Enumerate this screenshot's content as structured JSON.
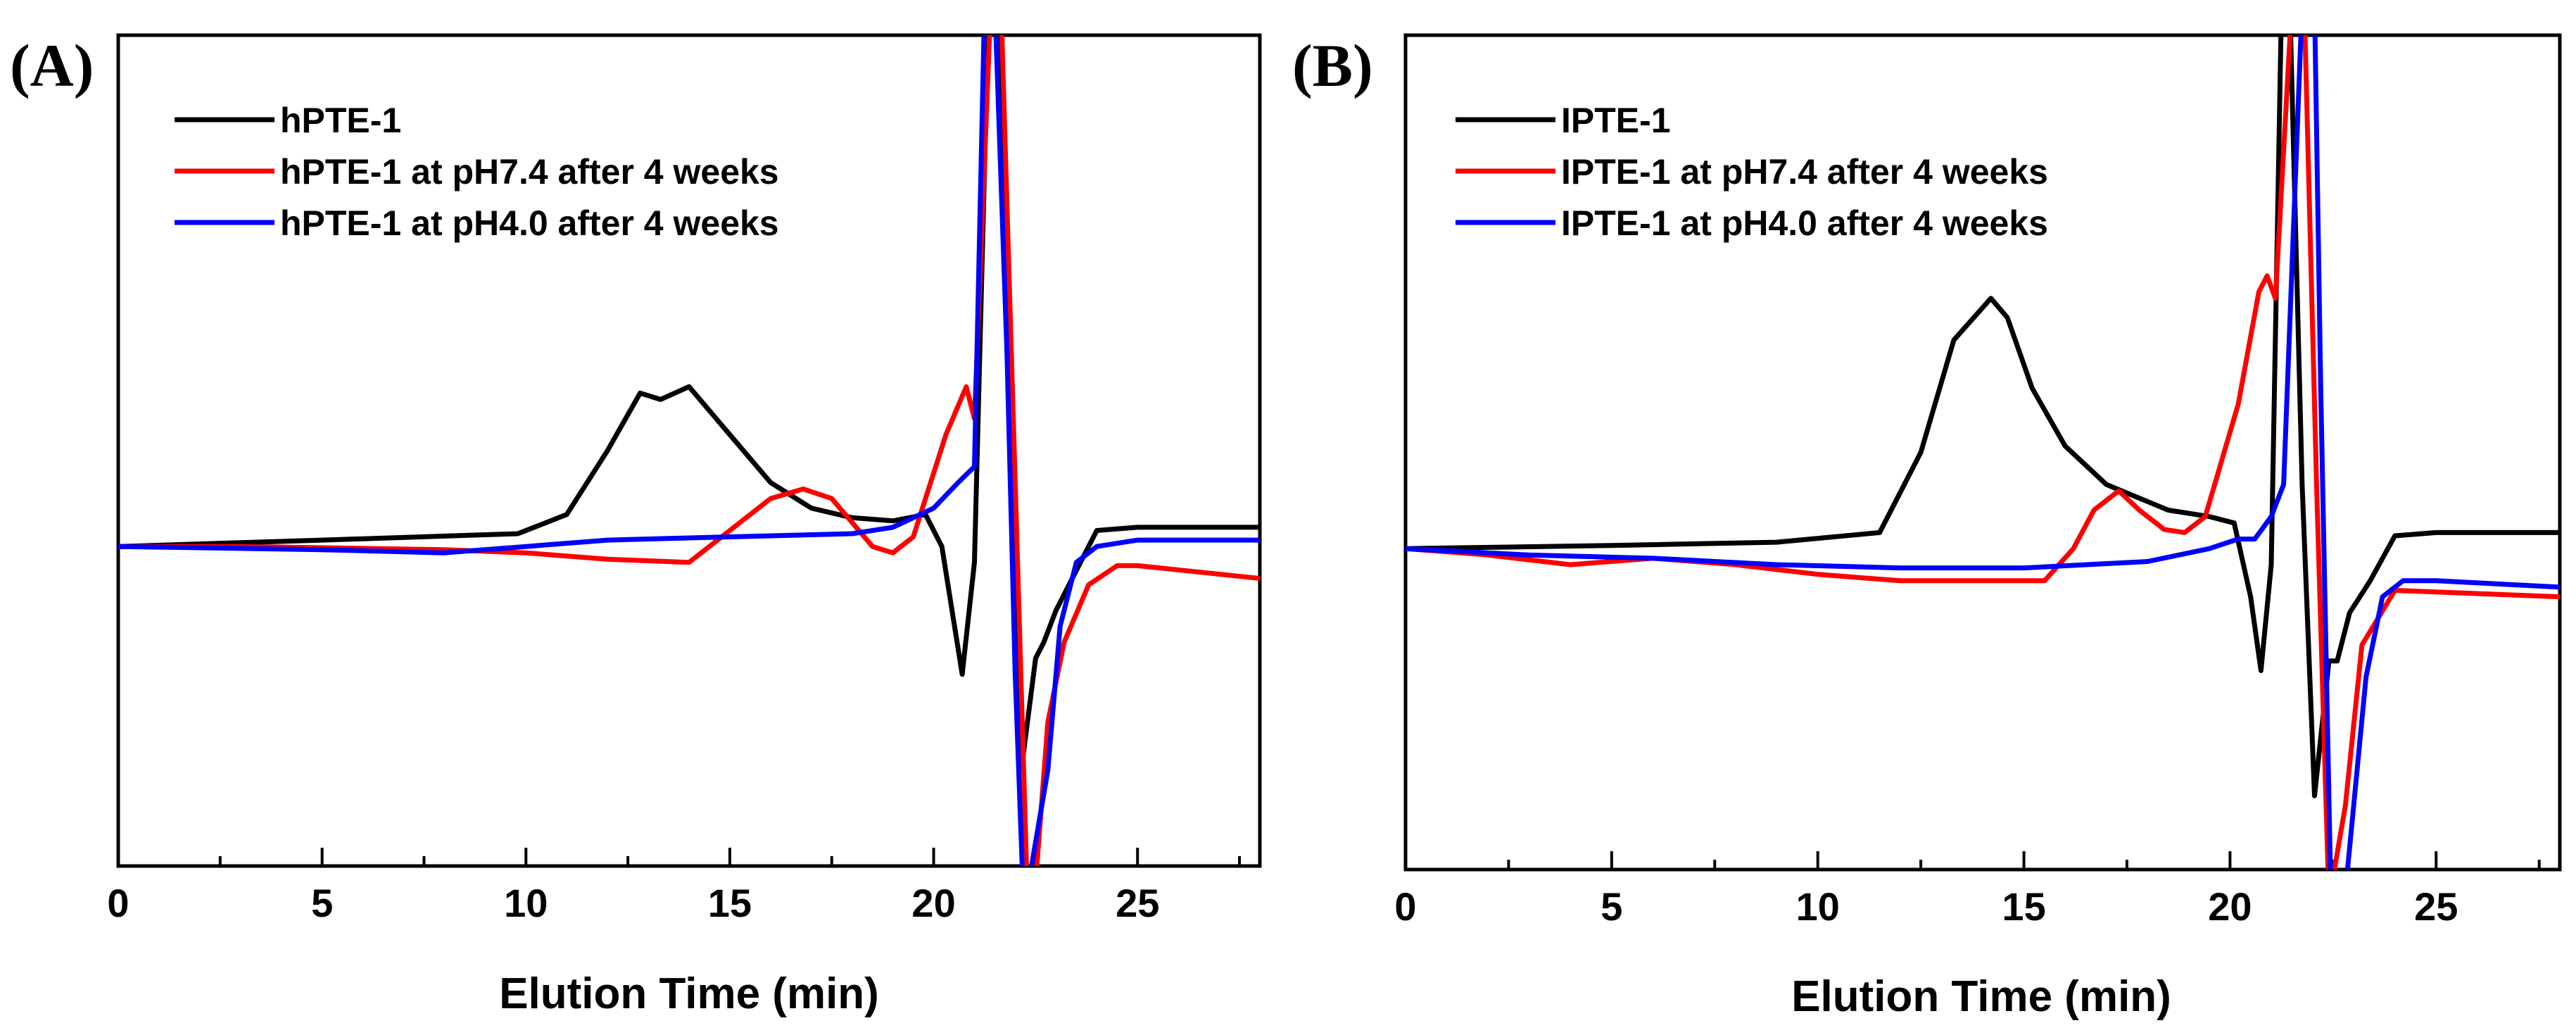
{
  "chart_data": [
    {
      "type": "line",
      "panel_label": "(A)",
      "title": "",
      "xlabel": "Elution Time (min)",
      "ylabel": "",
      "xlim": [
        0,
        28
      ],
      "ylim": [
        -1.0,
        1.6
      ],
      "xticks": [
        0,
        5,
        10,
        15,
        20,
        25
      ],
      "xtick_labels": [
        "0",
        "5",
        "10",
        "15",
        "20",
        "25"
      ],
      "legend_position": "top-left",
      "series": [
        {
          "name": "hPTE-1",
          "color": "#000000",
          "x": [
            0,
            5,
            9.8,
            11,
            12,
            12.8,
            13.3,
            14,
            15,
            16,
            17,
            18,
            19,
            19.8,
            20.2,
            20.7,
            21.0,
            21.35,
            21.6,
            21.9,
            22.15,
            22.5,
            22.7,
            23.0,
            23.4,
            24,
            25,
            28
          ],
          "y": [
            0.0,
            0.02,
            0.04,
            0.1,
            0.3,
            0.48,
            0.46,
            0.5,
            0.35,
            0.2,
            0.12,
            0.09,
            0.08,
            0.1,
            0.0,
            -0.4,
            -0.05,
            1.7,
            1.7,
            0.2,
            -0.7,
            -0.35,
            -0.3,
            -0.2,
            -0.1,
            0.05,
            0.06,
            0.06
          ]
        },
        {
          "name": "hPTE-1 at pH7.4 after 4 weeks",
          "color": "#ff0000",
          "x": [
            0,
            3,
            8,
            10,
            12,
            14,
            15,
            16,
            16.8,
            17.5,
            18.5,
            19,
            19.5,
            20.3,
            20.8,
            21.0,
            21.4,
            21.65,
            22.0,
            22.3,
            22.5,
            22.8,
            23.2,
            23.8,
            24.5,
            25,
            28
          ],
          "y": [
            0.0,
            0.0,
            -0.01,
            -0.02,
            -0.04,
            -0.05,
            0.05,
            0.15,
            0.18,
            0.15,
            0.0,
            -0.02,
            0.03,
            0.35,
            0.5,
            0.4,
            1.7,
            1.7,
            0.2,
            -1.1,
            -1.05,
            -0.55,
            -0.3,
            -0.12,
            -0.06,
            -0.06,
            -0.1
          ]
        },
        {
          "name": "hPTE-1 at pH4.0 after 4 weeks",
          "color": "#0000ff",
          "x": [
            0,
            5,
            8,
            10,
            12,
            15,
            18,
            19,
            20,
            20.6,
            21.0,
            21.25,
            21.5,
            21.8,
            22.0,
            22.2,
            22.4,
            22.8,
            23.1,
            23.5,
            24,
            25,
            28
          ],
          "y": [
            0.0,
            -0.01,
            -0.02,
            0.0,
            0.02,
            0.03,
            0.04,
            0.06,
            0.12,
            0.2,
            0.25,
            1.7,
            1.7,
            0.6,
            -0.4,
            -1.1,
            -1.0,
            -0.7,
            -0.25,
            -0.05,
            0.0,
            0.02,
            0.02
          ]
        }
      ]
    },
    {
      "type": "line",
      "panel_label": "(B)",
      "title": "",
      "xlabel": "Elution Time (min)",
      "ylabel": "",
      "xlim": [
        0,
        28
      ],
      "ylim": [
        -1.0,
        1.6
      ],
      "xticks": [
        0,
        5,
        10,
        15,
        20,
        25
      ],
      "xtick_labels": [
        "0",
        "5",
        "10",
        "15",
        "20",
        "25"
      ],
      "legend_position": "top-left",
      "series": [
        {
          "name": "IPTE-1",
          "color": "#000000",
          "x": [
            0,
            5,
            9,
            11.5,
            12.5,
            13.3,
            14.2,
            14.6,
            15.2,
            16,
            17,
            18.5,
            19.5,
            20.1,
            20.5,
            20.75,
            21.0,
            21.25,
            21.45,
            21.75,
            22.05,
            22.4,
            22.6,
            22.9,
            23.4,
            24,
            25,
            28
          ],
          "y": [
            0.0,
            0.01,
            0.02,
            0.05,
            0.3,
            0.65,
            0.78,
            0.72,
            0.5,
            0.32,
            0.2,
            0.12,
            0.1,
            0.08,
            -0.15,
            -0.38,
            -0.05,
            1.7,
            1.7,
            0.2,
            -0.77,
            -0.35,
            -0.35,
            -0.2,
            -0.1,
            0.04,
            0.05,
            0.05
          ]
        },
        {
          "name": "IPTE-1 at pH7.4 after 4 weeks",
          "color": "#ff0000",
          "x": [
            0,
            2,
            4,
            6,
            8,
            10,
            12,
            15.5,
            16.2,
            16.7,
            17.3,
            17.8,
            18.4,
            18.9,
            19.4,
            20.2,
            20.7,
            20.9,
            21.1,
            21.5,
            21.8,
            22.1,
            22.4,
            22.8,
            23.2,
            24,
            28
          ],
          "y": [
            0.0,
            -0.02,
            -0.05,
            -0.03,
            -0.05,
            -0.08,
            -0.1,
            -0.1,
            0.0,
            0.12,
            0.18,
            0.12,
            0.06,
            0.05,
            0.1,
            0.45,
            0.8,
            0.85,
            0.78,
            1.7,
            1.7,
            0.2,
            -1.1,
            -0.8,
            -0.3,
            -0.13,
            -0.15
          ]
        },
        {
          "name": "IPTE-1 at pH4.0 after 4 weeks",
          "color": "#0000ff",
          "x": [
            0,
            3,
            6,
            9,
            12,
            15,
            18,
            19.5,
            20.2,
            20.6,
            21.0,
            21.3,
            21.75,
            22.05,
            22.2,
            22.45,
            22.85,
            23.3,
            23.7,
            24.2,
            25,
            28
          ],
          "y": [
            0.0,
            -0.02,
            -0.03,
            -0.05,
            -0.06,
            -0.06,
            -0.04,
            0.0,
            0.03,
            0.03,
            0.1,
            0.2,
            1.7,
            1.7,
            0.5,
            -1.1,
            -1.0,
            -0.4,
            -0.15,
            -0.1,
            -0.1,
            -0.12
          ]
        }
      ]
    }
  ]
}
